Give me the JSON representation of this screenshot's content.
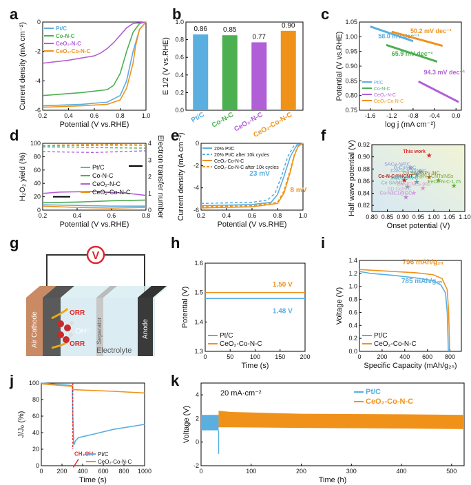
{
  "colors": {
    "ptc": "#5aaee0",
    "con": "#4caf50",
    "ceo2n": "#b15fd6",
    "ceo2con": "#f0921a",
    "red": "#e0262a"
  },
  "chart_data": [
    {
      "id": "a",
      "type": "line",
      "panel": "a",
      "xlabel": "Potential (V vs.RHE)",
      "ylabel": "Current density (mA cm⁻²)",
      "xlim": [
        0.2,
        1.0
      ],
      "ylim": [
        -6,
        0
      ],
      "xticks": [
        "0.2",
        "0.4",
        "0.6",
        "0.8",
        "1.0"
      ],
      "yticks": [
        "-6",
        "-4",
        "-2",
        "0"
      ],
      "legend": [
        "Pt/C",
        "Co-N-C",
        "CeO₂-N-C",
        "CeO₂-Co-N-C"
      ],
      "series": [
        {
          "name": "Pt/C",
          "color": "ptc",
          "x": [
            0.2,
            0.5,
            0.7,
            0.8,
            0.85,
            0.9,
            0.95,
            1.0
          ],
          "y": [
            -5.7,
            -5.6,
            -5.45,
            -5.0,
            -4.0,
            -2.0,
            -0.5,
            0
          ]
        },
        {
          "name": "Co-N-C",
          "color": "con",
          "x": [
            0.2,
            0.5,
            0.7,
            0.75,
            0.8,
            0.85,
            0.9,
            0.95,
            1.0
          ],
          "y": [
            -5.0,
            -4.8,
            -4.6,
            -4.3,
            -3.5,
            -2.0,
            -0.7,
            -0.1,
            0
          ]
        },
        {
          "name": "CeO₂-N-C",
          "color": "ceo2n",
          "x": [
            0.2,
            0.4,
            0.6,
            0.65,
            0.7,
            0.75,
            0.8,
            0.85,
            0.9,
            1.0
          ],
          "y": [
            -2.8,
            -2.6,
            -2.3,
            -2.1,
            -1.8,
            -1.4,
            -0.9,
            -0.4,
            -0.1,
            0
          ]
        },
        {
          "name": "CeO₂-Co-N-C",
          "color": "ceo2con",
          "x": [
            0.2,
            0.5,
            0.7,
            0.8,
            0.85,
            0.9,
            0.92,
            0.95,
            1.0
          ],
          "y": [
            -5.8,
            -5.7,
            -5.6,
            -5.3,
            -4.5,
            -2.8,
            -1.6,
            -0.5,
            0
          ]
        }
      ]
    },
    {
      "id": "b",
      "type": "bar",
      "panel": "b",
      "ylabel": "E 1/2 (V vs.RHE)",
      "ylim": [
        0.0,
        1.0
      ],
      "yticks": [
        "0.0",
        "0.2",
        "0.4",
        "0.6",
        "0.8",
        "1.0"
      ],
      "categories": [
        "Pt/C",
        "Co-N-C",
        "CeO₂-N-C",
        "CeO₂-Co-N-C"
      ],
      "values": [
        0.86,
        0.85,
        0.77,
        0.9
      ],
      "value_labels": [
        "0.86",
        "0.85",
        "0.77",
        "0.90"
      ],
      "bar_colors": [
        "ptc",
        "con",
        "ceo2n",
        "ceo2con"
      ]
    },
    {
      "id": "c",
      "type": "scatter",
      "panel": "c",
      "xlabel": "log j (mA cm⁻²)",
      "ylabel": "Potential (V vs.RHE)",
      "xlim": [
        -1.8,
        0.1
      ],
      "ylim": [
        0.75,
        1.05
      ],
      "xticks": [
        "-1.6",
        "-1.2",
        "-0.8",
        "-0.4",
        "0.0"
      ],
      "yticks": [
        "0.75",
        "0.80",
        "0.85",
        "0.90",
        "0.95",
        "1.00",
        "1.05"
      ],
      "legend": [
        "Pt/C",
        "Co-N-C",
        "CeO₂-N-C",
        "CeO₂-Co-N-C"
      ],
      "series": [
        {
          "name": "Pt/C",
          "color": "ptc",
          "x": [
            -1.6,
            -0.8
          ],
          "y": [
            1.035,
            0.985
          ],
          "label": "58.0 mV dec⁻¹"
        },
        {
          "name": "Co-N-C",
          "color": "con",
          "x": [
            -1.3,
            -0.35
          ],
          "y": [
            0.972,
            0.915
          ],
          "label": "65.9 mV dec⁻¹"
        },
        {
          "name": "CeO₂-N-C",
          "color": "ceo2n",
          "x": [
            -0.7,
            0.05
          ],
          "y": [
            0.848,
            0.778
          ],
          "label": "94.3 mV dec⁻¹"
        },
        {
          "name": "CeO₂-Co-N-C",
          "color": "ceo2con",
          "x": [
            -1.2,
            -0.25
          ],
          "y": [
            1.017,
            0.969
          ],
          "label": "50.2 mV dec⁻¹"
        }
      ]
    },
    {
      "id": "d",
      "type": "line",
      "panel": "d",
      "xlabel": "Potential (V vs.RHE)",
      "ylabel": "H₂O₂ yield (%)",
      "y2label": "Electron transfer number",
      "xlim": [
        0.2,
        0.8
      ],
      "ylim": [
        0,
        100
      ],
      "y2lim": [
        0,
        4
      ],
      "xticks": [
        "0.2",
        "0.4",
        "0.6",
        "0.8"
      ],
      "yticks": [
        "0",
        "20",
        "40",
        "60",
        "80",
        "100"
      ],
      "y2ticks": [
        "0",
        "1",
        "2",
        "3",
        "4"
      ],
      "legend": [
        "Pt/C",
        "Co-N-C",
        "CeO₂-N-C",
        "CeO₂-Co-N-C"
      ],
      "series": [
        {
          "name": "Pt/C",
          "color": "ptc",
          "x": [
            0.2,
            0.4,
            0.6,
            0.8
          ],
          "y": [
            8,
            7,
            6,
            6
          ]
        },
        {
          "name": "Co-N-C",
          "color": "con",
          "x": [
            0.2,
            0.4,
            0.6,
            0.8
          ],
          "y": [
            11,
            12,
            14,
            15
          ]
        },
        {
          "name": "CeO₂-N-C",
          "color": "ceo2n",
          "x": [
            0.2,
            0.3,
            0.5,
            0.7,
            0.8
          ],
          "y": [
            25,
            27,
            28,
            25,
            22
          ]
        },
        {
          "name": "CeO₂-Co-N-C",
          "color": "ceo2con",
          "x": [
            0.2,
            0.4,
            0.6,
            0.8
          ],
          "y": [
            6,
            4,
            3,
            4
          ]
        }
      ],
      "n_series": [
        {
          "color": "ptc",
          "x": [
            0.2,
            0.4,
            0.6,
            0.8
          ],
          "y": [
            3.84,
            3.86,
            3.88,
            3.88
          ]
        },
        {
          "color": "con",
          "x": [
            0.2,
            0.4,
            0.6,
            0.8
          ],
          "y": [
            3.78,
            3.77,
            3.73,
            3.71
          ]
        },
        {
          "color": "ceo2n",
          "x": [
            0.2,
            0.5,
            0.8
          ],
          "y": [
            3.5,
            3.45,
            3.55
          ]
        },
        {
          "color": "ceo2con",
          "x": [
            0.2,
            0.4,
            0.6,
            0.8
          ],
          "y": [
            3.88,
            3.92,
            3.94,
            3.9
          ]
        }
      ]
    },
    {
      "id": "e",
      "type": "line",
      "panel": "e",
      "xlabel": "Potential (V vs.RHE)",
      "ylabel": "Current density (mA cm⁻²)",
      "xlim": [
        0.2,
        1.0
      ],
      "ylim": [
        -6,
        0
      ],
      "xticks": [
        "0.2",
        "0.4",
        "0.6",
        "0.8",
        "1.0"
      ],
      "yticks": [
        "-6",
        "-4",
        "-2",
        "0"
      ],
      "legend": [
        "20% Pt/C",
        "20% Pt/C after 10k cycles",
        "CeO₂-Co-N-C",
        "CeO₂-Co-N-C after 10k cycles"
      ],
      "annotations": [
        "23 mV",
        "8 mV"
      ],
      "series": [
        {
          "name": "20% Pt/C",
          "color": "ptc",
          "dash": false,
          "x": [
            0.2,
            0.6,
            0.75,
            0.8,
            0.85,
            0.9,
            0.95,
            1.0
          ],
          "y": [
            -5.6,
            -5.5,
            -5.3,
            -4.6,
            -3.0,
            -1.2,
            -0.2,
            0
          ]
        },
        {
          "name": "20% Pt/C after 10k cycles",
          "color": "ptc",
          "dash": true,
          "x": [
            0.2,
            0.6,
            0.72,
            0.78,
            0.83,
            0.88,
            0.93,
            1.0
          ],
          "y": [
            -5.4,
            -5.3,
            -5.1,
            -4.5,
            -3.0,
            -1.2,
            -0.2,
            0
          ]
        },
        {
          "name": "CeO₂-Co-N-C",
          "color": "ceo2con",
          "dash": false,
          "x": [
            0.2,
            0.6,
            0.8,
            0.85,
            0.9,
            0.93,
            0.96,
            1.0
          ],
          "y": [
            -5.8,
            -5.7,
            -5.4,
            -4.5,
            -2.6,
            -1.2,
            -0.3,
            0
          ]
        },
        {
          "name": "CeO₂-Co-N-C after 10k cycles",
          "color": "ceo2con",
          "dash": true,
          "x": [
            0.2,
            0.6,
            0.8,
            0.85,
            0.9,
            0.93,
            0.96,
            1.0
          ],
          "y": [
            -5.7,
            -5.6,
            -5.3,
            -4.3,
            -2.4,
            -1.1,
            -0.3,
            0
          ]
        }
      ]
    },
    {
      "id": "f",
      "type": "scatter",
      "panel": "f",
      "xlabel": "Onset potential (V)",
      "ylabel": "Half wave potential (V)",
      "xlim": [
        0.8,
        1.1
      ],
      "ylim": [
        0.81,
        0.92
      ],
      "xticks": [
        "0.80",
        "0.85",
        "0.90",
        "0.95",
        "1.00",
        "1.05",
        "1.10"
      ],
      "yticks": [
        "0.82",
        "0.84",
        "0.86",
        "0.88",
        "0.90",
        "0.92"
      ],
      "points": [
        {
          "label": "This work",
          "x": 0.985,
          "y": 0.902,
          "color": "#e0262a"
        },
        {
          "label": "SACe-N/PC",
          "x": 0.925,
          "y": 0.881,
          "color": "#9b8ed8"
        },
        {
          "label": "G-CuNOC",
          "x": 0.955,
          "y": 0.875,
          "color": "#6aa0d0"
        },
        {
          "label": "Co/Co₉S₈@NSC",
          "x": 0.945,
          "y": 0.87,
          "color": "#6aa0d0"
        },
        {
          "label": "Co-N-C@HCNT",
          "x": 0.905,
          "y": 0.861,
          "color": "#b8281e"
        },
        {
          "label": "Co SAs-NPs /NC",
          "x": 0.985,
          "y": 0.866,
          "color": "#a0681e"
        },
        {
          "label": "Co@N - CNTs/NSs",
          "x": 1.015,
          "y": 0.861,
          "color": "#7aa020"
        },
        {
          "label": "MoC/Co-N-C",
          "x": 0.945,
          "y": 0.858,
          "color": "#2aa8c8"
        },
        {
          "label": "Ce SA/MC",
          "x": 0.915,
          "y": 0.85,
          "color": "#8aa8a8"
        },
        {
          "label": "CoN/CNCs-900",
          "x": 0.965,
          "y": 0.848,
          "color": "#e090c0"
        },
        {
          "label": "FeCo-N-C-1.25",
          "x": 1.065,
          "y": 0.852,
          "color": "#5ab030"
        },
        {
          "label": "SD Ce/N-C",
          "x": 0.935,
          "y": 0.84,
          "color": "#d0a0e0"
        },
        {
          "label": "Co-N3C1@GC",
          "x": 0.91,
          "y": 0.833,
          "color": "#c080d0"
        }
      ]
    },
    {
      "id": "h",
      "type": "line",
      "panel": "h",
      "xlabel": "Time (s)",
      "ylabel": "Potential (V)",
      "xlim": [
        0,
        200
      ],
      "ylim": [
        1.3,
        1.6
      ],
      "xticks": [
        "0",
        "50",
        "100",
        "150",
        "200"
      ],
      "yticks": [
        "1.3",
        "1.4",
        "1.5",
        "1.6"
      ],
      "legend": [
        "Pt/C",
        "CeO₂-Co-N-C"
      ],
      "annotations": [
        "1.50 V",
        "1.48 V"
      ],
      "series": [
        {
          "name": "Pt/C",
          "color": "ptc",
          "x": [
            0,
            200
          ],
          "y": [
            1.48,
            1.48
          ]
        },
        {
          "name": "CeO₂-Co-N-C",
          "color": "ceo2con",
          "x": [
            0,
            200
          ],
          "y": [
            1.5,
            1.5
          ]
        }
      ]
    },
    {
      "id": "i",
      "type": "line",
      "panel": "i",
      "xlabel": "Specific Capacity (mAh/g₂ₙ)",
      "ylabel": "Voltage (V)",
      "xlim": [
        0,
        900
      ],
      "ylim": [
        0.0,
        1.4
      ],
      "xticks": [
        "0",
        "200",
        "400",
        "600",
        "800"
      ],
      "yticks": [
        "0.0",
        "0.2",
        "0.4",
        "0.6",
        "0.8",
        "1.0",
        "1.2",
        "1.4"
      ],
      "legend": [
        "Pt/C",
        "CeO₂-Co-N-C"
      ],
      "annotations": [
        "796 mAh/g₂ₙ",
        "785 mAh/g₂ₙ"
      ],
      "series": [
        {
          "name": "Pt/C",
          "color": "ptc",
          "x": [
            0,
            100,
            300,
            500,
            650,
            720,
            760,
            775,
            782,
            785
          ],
          "y": [
            1.23,
            1.2,
            1.17,
            1.13,
            1.09,
            1.02,
            0.9,
            0.6,
            0.2,
            0
          ]
        },
        {
          "name": "CeO₂-Co-N-C",
          "color": "ceo2con",
          "x": [
            0,
            100,
            300,
            500,
            650,
            730,
            775,
            788,
            794,
            796
          ],
          "y": [
            1.26,
            1.25,
            1.23,
            1.21,
            1.18,
            1.12,
            0.95,
            0.6,
            0.2,
            0
          ]
        }
      ]
    },
    {
      "id": "j",
      "type": "line",
      "panel": "j",
      "xlabel": "Time (s)",
      "ylabel": "J/J₀ (%)",
      "xlim": [
        0,
        1000
      ],
      "ylim": [
        0,
        100
      ],
      "xticks": [
        "0",
        "200",
        "400",
        "600",
        "800",
        "1000"
      ],
      "yticks": [
        "0",
        "20",
        "40",
        "60",
        "80",
        "100"
      ],
      "legend": [
        "Pt/C",
        "CeO₂-Co-N-C"
      ],
      "annotations": [
        "CH₃OH"
      ],
      "series": [
        {
          "name": "Pt/C",
          "color": "ptc",
          "x": [
            0,
            300,
            305,
            315,
            330,
            360,
            500,
            700,
            1000
          ],
          "y": [
            100,
            97,
            60,
            25,
            30,
            34,
            38,
            44,
            50
          ]
        },
        {
          "name": "CeO₂-Co-N-C",
          "color": "ceo2con",
          "x": [
            0,
            300,
            305,
            500,
            700,
            1000
          ],
          "y": [
            99,
            96,
            92,
            91,
            90,
            88
          ]
        }
      ]
    },
    {
      "id": "k",
      "type": "line",
      "panel": "k",
      "xlabel": "Time (h)",
      "ylabel": "Voltage (V)",
      "xlim": [
        0,
        525
      ],
      "ylim": [
        -2,
        5
      ],
      "xticks": [
        "0",
        "100",
        "200",
        "300",
        "400",
        "500"
      ],
      "yticks": [
        "-2",
        "0",
        "2",
        "4"
      ],
      "legend": [
        "Pt/C",
        "CeO₂-Co-N-C"
      ],
      "annotations": [
        "20 mA·cm⁻²"
      ],
      "series": [
        {
          "name": "Pt/C",
          "color": "ptc",
          "x": [
            0,
            35
          ],
          "y_upper": [
            2.3,
            2.3
          ],
          "y_lower": [
            1.0,
            1.0
          ],
          "y_dip": -1.0
        },
        {
          "name": "CeO₂-Co-N-C",
          "color": "ceo2con",
          "x": [
            35,
            60,
            200,
            400,
            525
          ],
          "y_upper": [
            2.65,
            2.55,
            2.4,
            2.35,
            2.3
          ],
          "y_lower": [
            1.25,
            1.25,
            1.2,
            1.15,
            1.1
          ]
        }
      ]
    }
  ],
  "panel_labels": [
    "a",
    "b",
    "c",
    "d",
    "e",
    "f",
    "g",
    "h",
    "i",
    "j",
    "k"
  ],
  "schematic": {
    "voltmeter": "V",
    "air_cathode": "Air Cathode",
    "anode": "Anode",
    "separator": "Separator",
    "electrolyte": "Electrolyte",
    "orr_top": "ORR",
    "orr_bottom": "ORR",
    "oh": "OH⁻"
  }
}
